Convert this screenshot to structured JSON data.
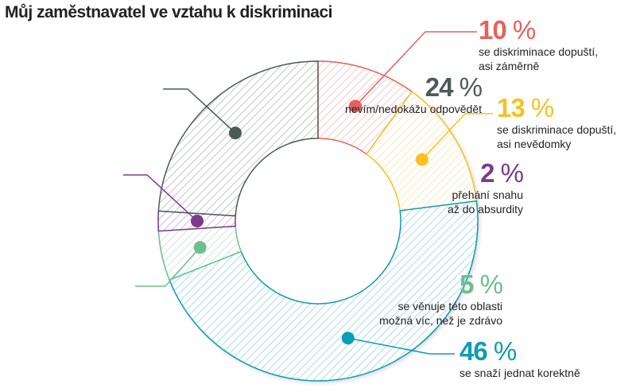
{
  "title": "Můj zaměstnavatel ve vztahu k diskriminaci",
  "chart_data": {
    "type": "pie",
    "donut": true,
    "title": "Můj zaměstnavatel ve vztahu k diskriminaci",
    "unit": "%",
    "slices": [
      {
        "value": 10,
        "pct_label": "10",
        "label_lines": [
          "se diskriminace dopuští,",
          "asi záměrně"
        ],
        "color": "#e8605a"
      },
      {
        "value": 13,
        "pct_label": "13",
        "label_lines": [
          "se diskriminace dopuští,",
          "asi nevědomky"
        ],
        "color": "#f7c125"
      },
      {
        "value": 46,
        "pct_label": "46",
        "label_lines": [
          "se snaží jednat korektně"
        ],
        "color": "#0e9bb5"
      },
      {
        "value": 5,
        "pct_label": "5",
        "label_lines": [
          "se věnuje této oblasti",
          "možná víc, než je zdrávo"
        ],
        "color": "#6dbf8c"
      },
      {
        "value": 2,
        "pct_label": "2",
        "label_lines": [
          "přehání snahu",
          "až do absurdity"
        ],
        "color": "#7b3a8c"
      },
      {
        "value": 24,
        "pct_label": "24",
        "label_lines": [
          "nevím/nedokážu odpovědět"
        ],
        "color": "#4e5a57"
      }
    ]
  }
}
